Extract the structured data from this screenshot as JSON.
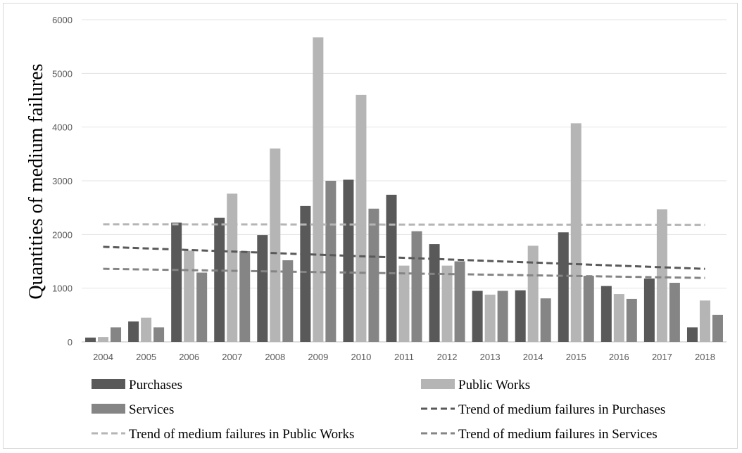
{
  "chart_data": {
    "type": "bar",
    "title": "",
    "xlabel": "",
    "ylabel": "Quantities of medium failures",
    "ylim": [
      0,
      6000
    ],
    "yticks": [
      0,
      1000,
      2000,
      3000,
      4000,
      5000,
      6000
    ],
    "grid": true,
    "legend_position": "bottom",
    "categories": [
      "2004",
      "2005",
      "2006",
      "2007",
      "2008",
      "2009",
      "2010",
      "2011",
      "2012",
      "2013",
      "2014",
      "2015",
      "2016",
      "2017",
      "2018"
    ],
    "series": [
      {
        "name": "Purchases",
        "color": "#595959",
        "values": [
          80,
          380,
          2220,
          2310,
          1990,
          2530,
          3020,
          2740,
          1820,
          950,
          960,
          2040,
          1040,
          1180,
          270
        ]
      },
      {
        "name": "Public Works",
        "color": "#b5b5b5",
        "values": [
          90,
          450,
          1700,
          2760,
          3600,
          5670,
          4600,
          1420,
          1420,
          880,
          1790,
          4070,
          890,
          2470,
          770
        ]
      },
      {
        "name": "Services",
        "color": "#858585",
        "values": [
          270,
          270,
          1290,
          1690,
          1520,
          3000,
          2480,
          2060,
          1500,
          950,
          810,
          1230,
          800,
          1100,
          500
        ]
      }
    ],
    "trendlines": [
      {
        "name": "Trend of medium failures in Purchases",
        "color": "#595959",
        "start": 1770,
        "end": 1360
      },
      {
        "name": "Trend of medium failures in Public Works",
        "color": "#b5b5b5",
        "start": 2190,
        "end": 2180
      },
      {
        "name": "Trend of medium failures in Services",
        "color": "#858585",
        "start": 1360,
        "end": 1190
      }
    ]
  }
}
